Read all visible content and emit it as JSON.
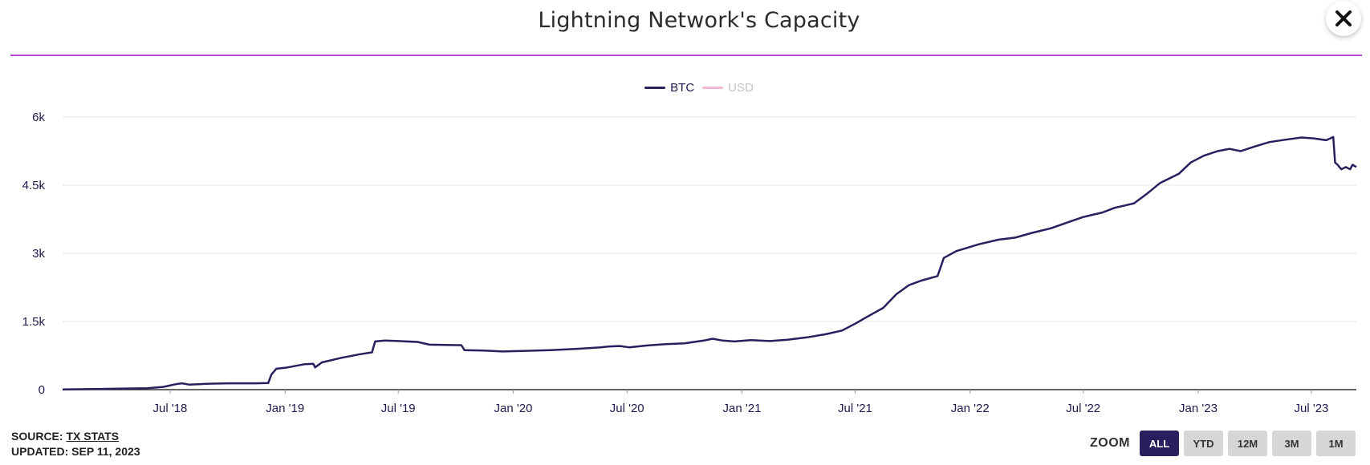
{
  "header": {
    "title": "Lightning Network's Capacity"
  },
  "legend": [
    {
      "label": "BTC",
      "color": "#2a1f5e",
      "active": true
    },
    {
      "label": "USD",
      "color": "#f2b8d6",
      "active": false
    }
  ],
  "footer": {
    "source_prefix": "SOURCE:",
    "source_link": "TX STATS",
    "updated": "UPDATED: SEP 11, 2023"
  },
  "zoom": {
    "label": "ZOOM",
    "buttons": [
      "ALL",
      "YTD",
      "12M",
      "3M",
      "1M"
    ],
    "selected": "ALL"
  },
  "icons": {
    "close": "close-icon"
  },
  "chart_data": {
    "type": "line",
    "title": "Lightning Network's Capacity",
    "xlabel": "",
    "ylabel": "",
    "y_ticks": [
      "0",
      "1.5k",
      "3k",
      "4.5k",
      "6k"
    ],
    "y_tick_values": [
      0,
      1500,
      3000,
      4500,
      6000
    ],
    "ylim": [
      0,
      6000
    ],
    "x_ticks": [
      "Jul '18",
      "Jan '19",
      "Jul '19",
      "Jan '20",
      "Jul '20",
      "Jan '21",
      "Jul '21",
      "Jan '22",
      "Jul '22",
      "Jan '23",
      "Jul '23"
    ],
    "x_tick_dates": [
      "2018-07-01",
      "2019-01-01",
      "2019-07-01",
      "2020-01-01",
      "2020-07-01",
      "2021-01-01",
      "2021-07-01",
      "2022-01-01",
      "2022-07-01",
      "2023-01-01",
      "2023-07-01"
    ],
    "xlim": [
      "2018-01-10",
      "2023-09-11"
    ],
    "grid": true,
    "legend_position": "top-center",
    "series": [
      {
        "name": "BTC",
        "color": "#2a1f5e",
        "points": [
          [
            "2018-01-10",
            5
          ],
          [
            "2018-02-15",
            10
          ],
          [
            "2018-04-01",
            20
          ],
          [
            "2018-05-25",
            30
          ],
          [
            "2018-06-20",
            60
          ],
          [
            "2018-07-10",
            120
          ],
          [
            "2018-07-20",
            140
          ],
          [
            "2018-08-01",
            110
          ],
          [
            "2018-09-01",
            130
          ],
          [
            "2018-10-01",
            140
          ],
          [
            "2018-11-15",
            140
          ],
          [
            "2018-12-05",
            145
          ],
          [
            "2018-12-10",
            330
          ],
          [
            "2018-12-18",
            460
          ],
          [
            "2019-01-01",
            480
          ],
          [
            "2019-02-01",
            560
          ],
          [
            "2019-02-15",
            570
          ],
          [
            "2019-02-18",
            490
          ],
          [
            "2019-03-01",
            600
          ],
          [
            "2019-04-01",
            700
          ],
          [
            "2019-05-01",
            780
          ],
          [
            "2019-05-20",
            820
          ],
          [
            "2019-05-25",
            1060
          ],
          [
            "2019-06-10",
            1080
          ],
          [
            "2019-07-01",
            1070
          ],
          [
            "2019-08-01",
            1050
          ],
          [
            "2019-08-20",
            990
          ],
          [
            "2019-10-01",
            980
          ],
          [
            "2019-10-10",
            980
          ],
          [
            "2019-10-15",
            870
          ],
          [
            "2019-11-15",
            860
          ],
          [
            "2019-12-15",
            840
          ],
          [
            "2020-01-15",
            850
          ],
          [
            "2020-03-01",
            870
          ],
          [
            "2020-04-15",
            900
          ],
          [
            "2020-05-20",
            930
          ],
          [
            "2020-06-01",
            950
          ],
          [
            "2020-06-20",
            960
          ],
          [
            "2020-07-05",
            930
          ],
          [
            "2020-08-01",
            970
          ],
          [
            "2020-09-01",
            1000
          ],
          [
            "2020-10-01",
            1020
          ],
          [
            "2020-11-01",
            1080
          ],
          [
            "2020-11-15",
            1120
          ],
          [
            "2020-12-01",
            1080
          ],
          [
            "2020-12-20",
            1060
          ],
          [
            "2021-01-15",
            1090
          ],
          [
            "2021-02-15",
            1070
          ],
          [
            "2021-03-15",
            1100
          ],
          [
            "2021-04-15",
            1150
          ],
          [
            "2021-05-15",
            1220
          ],
          [
            "2021-06-10",
            1300
          ],
          [
            "2021-07-01",
            1450
          ],
          [
            "2021-07-20",
            1600
          ],
          [
            "2021-08-15",
            1800
          ],
          [
            "2021-09-05",
            2100
          ],
          [
            "2021-09-25",
            2300
          ],
          [
            "2021-10-15",
            2400
          ],
          [
            "2021-11-10",
            2500
          ],
          [
            "2021-11-20",
            2900
          ],
          [
            "2021-12-10",
            3050
          ],
          [
            "2022-01-15",
            3200
          ],
          [
            "2022-02-15",
            3300
          ],
          [
            "2022-03-15",
            3350
          ],
          [
            "2022-04-10",
            3450
          ],
          [
            "2022-05-10",
            3550
          ],
          [
            "2022-06-10",
            3700
          ],
          [
            "2022-07-01",
            3800
          ],
          [
            "2022-08-01",
            3900
          ],
          [
            "2022-08-20",
            4000
          ],
          [
            "2022-09-20",
            4100
          ],
          [
            "2022-10-10",
            4300
          ],
          [
            "2022-11-01",
            4550
          ],
          [
            "2022-12-01",
            4750
          ],
          [
            "2022-12-20",
            5000
          ],
          [
            "2023-01-10",
            5150
          ],
          [
            "2023-02-01",
            5250
          ],
          [
            "2023-02-20",
            5300
          ],
          [
            "2023-03-10",
            5250
          ],
          [
            "2023-04-01",
            5350
          ],
          [
            "2023-04-25",
            5450
          ],
          [
            "2023-05-20",
            5500
          ],
          [
            "2023-06-15",
            5550
          ],
          [
            "2023-07-05",
            5530
          ],
          [
            "2023-07-25",
            5490
          ],
          [
            "2023-08-05",
            5560
          ],
          [
            "2023-08-08",
            5000
          ],
          [
            "2023-08-12",
            4950
          ],
          [
            "2023-08-18",
            4850
          ],
          [
            "2023-08-25",
            4900
          ],
          [
            "2023-09-01",
            4850
          ],
          [
            "2023-09-05",
            4950
          ],
          [
            "2023-09-11",
            4900
          ]
        ]
      }
    ]
  }
}
